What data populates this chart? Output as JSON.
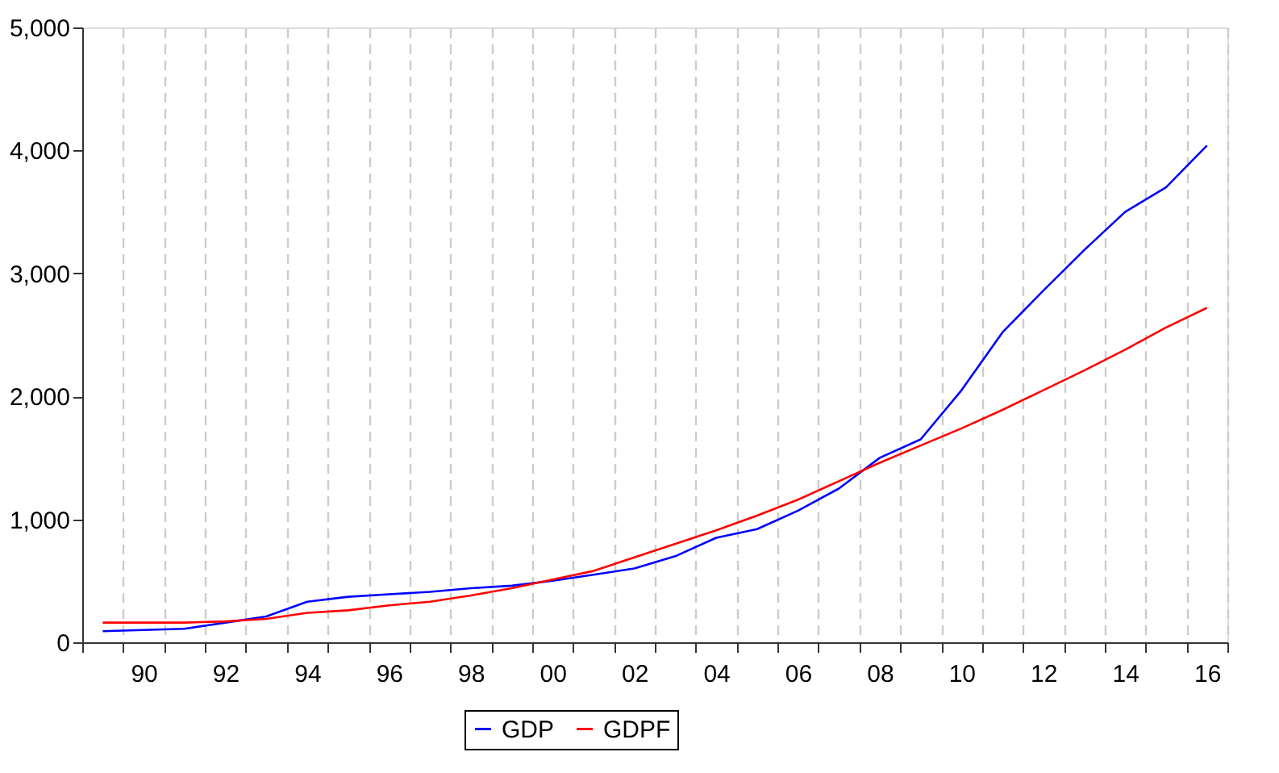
{
  "chart_data": {
    "type": "line",
    "categories": [
      null,
      "90",
      null,
      "92",
      null,
      "94",
      null,
      "96",
      null,
      "98",
      null,
      "00",
      null,
      "02",
      null,
      "04",
      null,
      "06",
      null,
      "08",
      null,
      "10",
      null,
      "12",
      null,
      "14",
      null,
      "16"
    ],
    "series": [
      {
        "name": "GDP",
        "color": "#0000ff",
        "values": [
          90,
          100,
          110,
          160,
          210,
          330,
          370,
          390,
          410,
          440,
          460,
          500,
          550,
          600,
          700,
          850,
          920,
          1070,
          1250,
          1500,
          1650,
          2050,
          2520,
          2860,
          3190,
          3500,
          3700,
          4040
        ]
      },
      {
        "name": "GDPF",
        "color": "#ff0000",
        "values": [
          160,
          160,
          160,
          170,
          190,
          240,
          260,
          300,
          330,
          380,
          440,
          510,
          580,
          690,
          800,
          910,
          1030,
          1160,
          1310,
          1460,
          1600,
          1740,
          1890,
          2050,
          2210,
          2380,
          2560,
          2720
        ]
      }
    ],
    "ylim": [
      0,
      5000
    ],
    "yticks": [
      0,
      {
        "value": 1000,
        "label": "1,000"
      },
      {
        "value": 2000,
        "label": "2,000"
      },
      {
        "value": 3000,
        "label": "3,000"
      },
      {
        "value": 4000,
        "label": "4,000"
      },
      {
        "value": 5000,
        "label": "5,000"
      }
    ],
    "grid": "x",
    "legend": "bottom"
  }
}
